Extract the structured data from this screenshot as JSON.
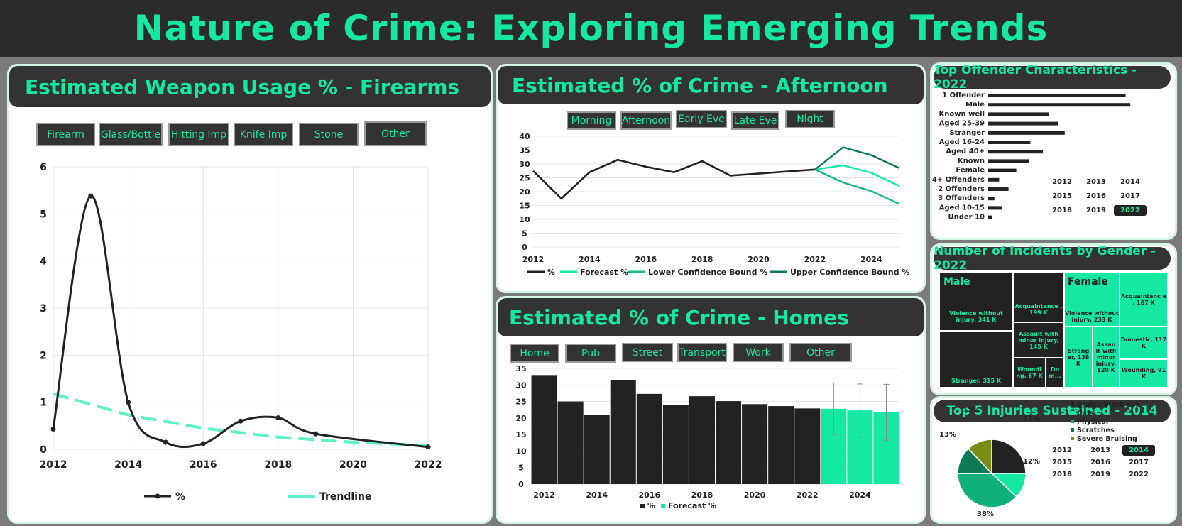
{
  "page_title": "Nature of Crime: Exploring Emerging Trends",
  "colors": {
    "accent": "#15e8a3",
    "dark": "#222222",
    "panel": "#333333",
    "trend": "#5ff0c9",
    "lower": "#16b881",
    "upper": "#0e7a55"
  },
  "weapon": {
    "title": "Estimated Weapon Usage % - Firearms",
    "buttons": [
      "Firearm",
      "Glass/Bottle",
      "Hitting Imp",
      "Knife Imp",
      "Stone",
      "Other"
    ],
    "legend": {
      "series": "%",
      "trend": "Trendline"
    }
  },
  "afternoon": {
    "title": "Estimated % of Crime - Afternoon",
    "buttons": [
      "Morning",
      "Afternoon",
      "Early Eve",
      "Late Eve",
      "Night"
    ],
    "legend": [
      "%",
      "Forecast %",
      "Lower Confidence Bound %",
      "Upper Confidence Bound %"
    ]
  },
  "homes": {
    "title": "Estimated % of Crime - Homes",
    "buttons": [
      "Home",
      "Pub",
      "Street",
      "Transport",
      "Work",
      "Other"
    ],
    "legend": [
      "%",
      "Forecast %"
    ]
  },
  "offender": {
    "title": "Top Offender Characteristics - 2022",
    "years": [
      "2012",
      "2013",
      "2014",
      "2015",
      "2016",
      "2017",
      "2018",
      "2019",
      "2022"
    ],
    "selected_year": "2022"
  },
  "gender": {
    "title": "Number of Incidents by Gender - 2022",
    "male_label": "Male",
    "female_label": "Female",
    "cells": {
      "m_violence": "Violence without injury, 341 K",
      "m_stranger": "Stranger, 315 K",
      "m_acq": "Acquaintance , 199 K",
      "m_assault": "Assault with minor injury, 145 K",
      "m_wound": "Woundi ng, 67 K",
      "m_dom": "Do m...",
      "f_violence": "Violence without injury, 233 K",
      "f_acq": "Acquaintanc e , 187 K",
      "f_stranger": "Strang er, 138 K",
      "f_assault": "Assau lt with minor injury, 120 K",
      "f_domestic": "Domestic, 117 K",
      "f_wound": "Wounding, 91 K"
    }
  },
  "injuries": {
    "title": "Top 5 Injuries Sustained - 2014",
    "years": [
      "2012",
      "2013",
      "2014",
      "2015",
      "2016",
      "2017",
      "2018",
      "2019",
      "2022"
    ],
    "selected_year": "2014"
  },
  "chart_data": [
    {
      "id": "weapon",
      "type": "line",
      "x": [
        2012,
        2013,
        2014,
        2015,
        2016,
        2017,
        2018,
        2019,
        2022
      ],
      "series": [
        {
          "name": "%",
          "values": [
            0.43,
            5.38,
            1.0,
            0.15,
            0.12,
            0.6,
            0.67,
            0.33,
            0.05
          ]
        }
      ],
      "trendline": [
        [
          2012,
          1.18
        ],
        [
          2014,
          0.73
        ],
        [
          2016,
          0.45
        ],
        [
          2018,
          0.26
        ],
        [
          2020,
          0.15
        ],
        [
          2022,
          0.08
        ]
      ],
      "xlim": [
        2012,
        2022
      ],
      "ylim": [
        0,
        6
      ],
      "xticks": [
        2012,
        2014,
        2016,
        2018,
        2020,
        2022
      ],
      "yticks": [
        0,
        1,
        2,
        3,
        4,
        5,
        6
      ],
      "grid": true,
      "legend": "bottom"
    },
    {
      "id": "afternoon",
      "type": "line",
      "x": [
        2012,
        2013,
        2014,
        2015,
        2016,
        2017,
        2018,
        2019,
        2022
      ],
      "series": [
        {
          "name": "%",
          "values": [
            27.5,
            17.5,
            27,
            31.5,
            29,
            27,
            31,
            25.8,
            28
          ]
        },
        {
          "name": "Forecast %",
          "x": [
            2022,
            2023,
            2024,
            2025
          ],
          "values": [
            28,
            29.5,
            26.8,
            22
          ]
        },
        {
          "name": "Lower Confidence Bound %",
          "x": [
            2022,
            2023,
            2024,
            2025
          ],
          "values": [
            28,
            23.3,
            20.2,
            15.5
          ]
        },
        {
          "name": "Upper Confidence Bound %",
          "x": [
            2022,
            2023,
            2024,
            2025
          ],
          "values": [
            28,
            36,
            33.2,
            28.5
          ]
        }
      ],
      "xlim": [
        2012,
        2025
      ],
      "ylim": [
        0,
        40
      ],
      "xticks": [
        2012,
        2014,
        2016,
        2018,
        2020,
        2022,
        2024
      ],
      "yticks": [
        0,
        5,
        10,
        15,
        20,
        25,
        30,
        35,
        40
      ],
      "grid": true,
      "legend": "bottom"
    },
    {
      "id": "homes",
      "type": "bar",
      "categories": [
        "2012",
        "2013",
        "2014",
        "2015",
        "2016",
        "2017",
        "2018",
        "2019",
        "2020",
        "2021",
        "2022",
        "2023",
        "2024",
        "2025"
      ],
      "series": [
        {
          "name": "%",
          "values": [
            33,
            25,
            21,
            31.5,
            27.3,
            23.9,
            26.6,
            25.1,
            24.2,
            23.6,
            22.9,
            null,
            null,
            null
          ]
        },
        {
          "name": "Forecast %",
          "values": [
            null,
            null,
            null,
            null,
            null,
            null,
            null,
            null,
            null,
            null,
            null,
            22.8,
            22.3,
            21.7
          ]
        }
      ],
      "error_bars": [
        null,
        null,
        null,
        null,
        null,
        null,
        null,
        null,
        null,
        null,
        null,
        [
          15,
          30.6
        ],
        [
          14.2,
          30.3
        ],
        [
          13.3,
          30.2
        ]
      ],
      "xticks": [
        "2012",
        "2014",
        "2016",
        "2018",
        "2020",
        "2022",
        "2024"
      ],
      "ylim": [
        0,
        35
      ],
      "yticks": [
        0,
        5,
        10,
        15,
        20,
        25,
        30,
        35
      ],
      "grid": true,
      "legend": "bottom"
    },
    {
      "id": "offender",
      "type": "bar",
      "orientation": "horizontal",
      "categories": [
        "1 Offender",
        "Male",
        "Known well",
        "Aged 25-39",
        "Stranger",
        "Aged 16-24",
        "Aged 40+",
        "Known",
        "Female",
        "4+ Offenders",
        "2 Offenders",
        "3 Offenders",
        "Aged 10-15",
        "Under 10"
      ],
      "values": [
        88,
        91,
        39,
        45,
        49,
        27,
        35,
        26,
        18,
        7,
        13,
        4,
        9,
        2.5
      ],
      "xlim": [
        0,
        100
      ]
    },
    {
      "id": "injuries",
      "type": "pie",
      "labels": [
        "Bruise/Black Eye",
        "Cuts",
        "Physical",
        "Scratches",
        "Severe Bruising"
      ],
      "values": [
        25,
        12,
        38,
        13,
        12
      ],
      "data_labels": [
        "25%",
        "12%",
        "38%",
        "13%",
        "12%"
      ],
      "colors": [
        "#222222",
        "#15e8a3",
        "#10b07a",
        "#0d7a55",
        "#7a8c16"
      ],
      "legend": "right"
    }
  ]
}
